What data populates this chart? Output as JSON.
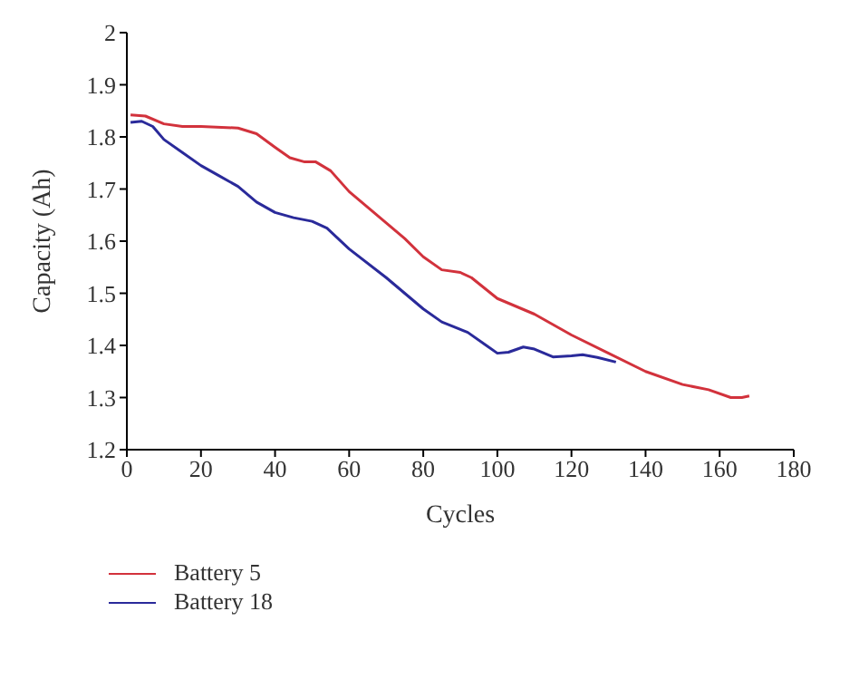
{
  "chart_data": {
    "type": "line",
    "xlabel": "Cycles",
    "ylabel": "Capacity (Ah)",
    "xlim": [
      0,
      180
    ],
    "xticks": [
      0,
      20,
      40,
      60,
      80,
      100,
      120,
      140,
      160,
      180
    ],
    "ylim": [
      1.2,
      2
    ],
    "yticks": [
      1.2,
      1.3,
      1.4,
      1.5,
      1.6,
      1.7,
      1.8,
      1.9,
      2
    ],
    "legend": "bottom",
    "grid": false,
    "series": [
      {
        "name": "Battery 5",
        "color": "#d2323c",
        "x": [
          1,
          5,
          10,
          15,
          20,
          30,
          35,
          40,
          44,
          48,
          51,
          55,
          60,
          65,
          70,
          75,
          80,
          85,
          90,
          93,
          100,
          110,
          120,
          130,
          140,
          150,
          157,
          163,
          166,
          168
        ],
        "values": [
          1.842,
          1.84,
          1.825,
          1.82,
          1.82,
          1.817,
          1.806,
          1.78,
          1.76,
          1.752,
          1.752,
          1.735,
          1.695,
          1.665,
          1.635,
          1.605,
          1.57,
          1.545,
          1.54,
          1.53,
          1.49,
          1.46,
          1.42,
          1.385,
          1.35,
          1.325,
          1.315,
          1.3,
          1.3,
          1.303
        ]
      },
      {
        "name": "Battery 18",
        "color": "#2a2a9a",
        "x": [
          1,
          4,
          7,
          10,
          15,
          20,
          25,
          30,
          35,
          40,
          45,
          50,
          54,
          60,
          70,
          80,
          85,
          92,
          97,
          100,
          103,
          107,
          110,
          115,
          120,
          123,
          127,
          132
        ],
        "values": [
          1.828,
          1.83,
          1.82,
          1.795,
          1.77,
          1.745,
          1.725,
          1.705,
          1.675,
          1.655,
          1.645,
          1.638,
          1.625,
          1.585,
          1.53,
          1.47,
          1.445,
          1.425,
          1.4,
          1.385,
          1.387,
          1.397,
          1.393,
          1.378,
          1.38,
          1.382,
          1.377,
          1.368
        ]
      }
    ]
  }
}
